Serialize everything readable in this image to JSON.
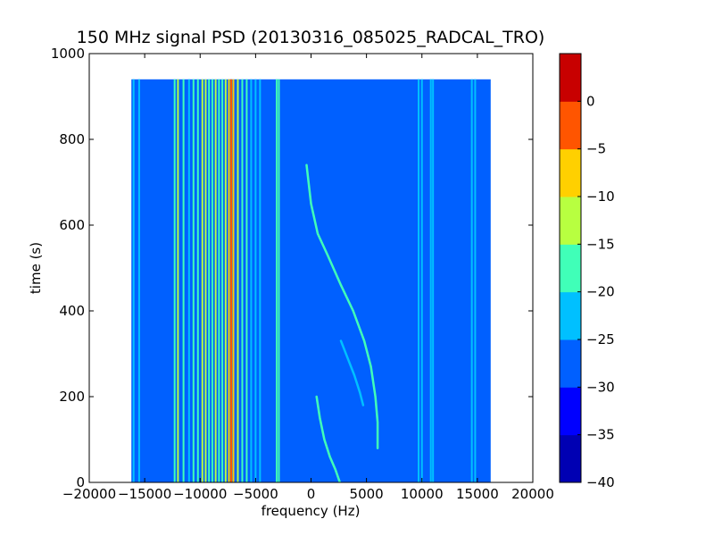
{
  "chart_data": {
    "type": "heatmap",
    "title": "150 MHz signal PSD (20130316_085025_RADCAL_TRO)",
    "xlabel": "frequency (Hz)",
    "ylabel": "time (s)",
    "xlim": [
      -20000,
      20000
    ],
    "ylim": [
      0,
      1000
    ],
    "x_ticks": [
      -20000,
      -15000,
      -10000,
      -5000,
      0,
      5000,
      10000,
      15000,
      20000
    ],
    "x_tick_labels": [
      "−20000",
      "−15000",
      "−10000",
      "−5000",
      "0",
      "5000",
      "10000",
      "15000",
      "20000"
    ],
    "y_ticks": [
      0,
      200,
      400,
      600,
      800,
      1000
    ],
    "y_tick_labels": [
      "0",
      "200",
      "400",
      "600",
      "800",
      "1000"
    ],
    "data_extent": {
      "x": [
        -16200,
        16200
      ],
      "y": [
        0,
        940
      ]
    },
    "background_level": -27.5,
    "colorbar": {
      "levels": [
        -40,
        -35,
        -30,
        -25,
        -20,
        -15,
        -10,
        -5,
        0
      ],
      "tick_labels": [
        "−40",
        "−35",
        "−30",
        "−25",
        "−20",
        "−15",
        "−10",
        "−5",
        "0"
      ],
      "colors": [
        "#0000b3",
        "#0000ff",
        "#0060ff",
        "#00c0ff",
        "#40ffb8",
        "#b8ff40",
        "#ffd000",
        "#ff5500",
        "#c80000"
      ]
    },
    "vertical_features": [
      {
        "x": -16000,
        "level": -22.5
      },
      {
        "x": -15500,
        "level": -22.5
      },
      {
        "x": -12300,
        "level": -17.5
      },
      {
        "x": -12000,
        "level": -12.5
      },
      {
        "x": -11500,
        "level": -17.5
      },
      {
        "x": -11000,
        "level": -22.5
      },
      {
        "x": -10600,
        "level": -17.5
      },
      {
        "x": -10200,
        "level": -17.5
      },
      {
        "x": -9800,
        "level": -12.5
      },
      {
        "x": -9500,
        "level": -12.5
      },
      {
        "x": -9200,
        "level": -17.5
      },
      {
        "x": -8900,
        "level": -17.5
      },
      {
        "x": -8600,
        "level": -12.5
      },
      {
        "x": -8300,
        "level": -17.5
      },
      {
        "x": -8000,
        "level": -17.5
      },
      {
        "x": -7700,
        "level": -12.5
      },
      {
        "x": -7400,
        "level": -7.5
      },
      {
        "x": -7200,
        "level": -2.5
      },
      {
        "x": -7000,
        "level": -7.5
      },
      {
        "x": -6600,
        "level": -12.5
      },
      {
        "x": -6200,
        "level": -17.5
      },
      {
        "x": -5800,
        "level": -17.5
      },
      {
        "x": -5400,
        "level": -22.5
      },
      {
        "x": -5000,
        "level": -22.5
      },
      {
        "x": -4600,
        "level": -22.5
      },
      {
        "x": -3100,
        "level": -17.5
      },
      {
        "x": -2900,
        "level": -17.5
      },
      {
        "x": 9700,
        "level": -22.5
      },
      {
        "x": 10000,
        "level": -22.5
      },
      {
        "x": 10800,
        "level": -22.5
      },
      {
        "x": 11000,
        "level": -22.5
      },
      {
        "x": 14500,
        "level": -22.5
      },
      {
        "x": 14800,
        "level": -22.5
      }
    ],
    "curved_tracks": [
      {
        "level": -17.5,
        "points": [
          [
            -400,
            740
          ],
          [
            0,
            650
          ],
          [
            600,
            580
          ],
          [
            1500,
            530
          ],
          [
            2700,
            460
          ],
          [
            3800,
            400
          ],
          [
            4800,
            330
          ],
          [
            5400,
            270
          ],
          [
            5800,
            200
          ],
          [
            6000,
            140
          ],
          [
            6000,
            80
          ]
        ]
      },
      {
        "level": -22.5,
        "points": [
          [
            2700,
            330
          ],
          [
            3300,
            290
          ],
          [
            3900,
            250
          ],
          [
            4400,
            210
          ],
          [
            4700,
            180
          ]
        ]
      },
      {
        "level": -17.5,
        "points": [
          [
            500,
            200
          ],
          [
            800,
            150
          ],
          [
            1200,
            100
          ],
          [
            1700,
            60
          ],
          [
            2200,
            30
          ],
          [
            2600,
            0
          ]
        ]
      }
    ]
  }
}
